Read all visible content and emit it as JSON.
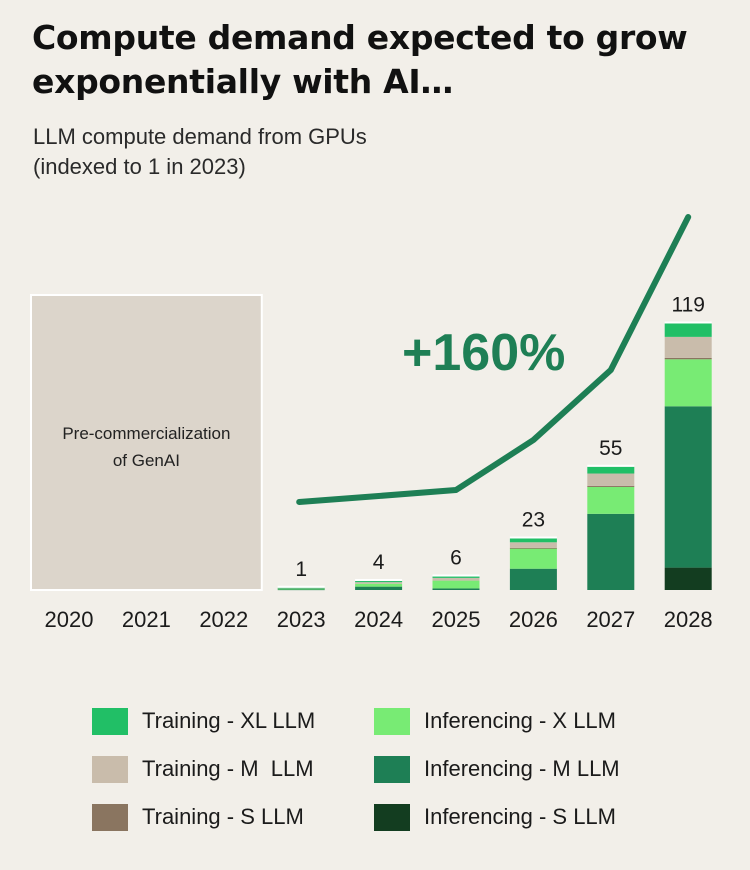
{
  "title_line1": "Compute demand expected to grow",
  "title_line2": "exponentially with AI…",
  "subtitle_line1": "LLM compute demand from GPUs",
  "subtitle_line2": "(indexed to 1 in 2023)",
  "chart_data": {
    "type": "bar",
    "stacked": true,
    "categories": [
      "2020",
      "2021",
      "2022",
      "2023",
      "2024",
      "2025",
      "2026",
      "2027",
      "2028"
    ],
    "totals": [
      null,
      null,
      null,
      1,
      4,
      6,
      23,
      55,
      119
    ],
    "total_labels": [
      "",
      "",
      "",
      "1",
      "4",
      "6",
      "23",
      "55",
      "119"
    ],
    "series": [
      {
        "name": "Inferencing - S LLM",
        "color": "#133d20",
        "values": [
          0,
          0,
          0,
          0,
          0,
          0,
          0,
          0,
          10
        ]
      },
      {
        "name": "Inferencing - M LLM",
        "color": "#1e7f55",
        "values": [
          0,
          0,
          0,
          0.3,
          1.5,
          0.7,
          9.5,
          34,
          72
        ]
      },
      {
        "name": "Inferencing - X LLM",
        "color": "#78eb74",
        "values": [
          0,
          0,
          0,
          0.3,
          1.3,
          3.5,
          9,
          12,
          21
        ]
      },
      {
        "name": "Training - S LLM",
        "color": "#8a7560",
        "values": [
          0,
          0,
          0,
          0,
          0,
          0,
          0.3,
          0.5,
          0.6
        ]
      },
      {
        "name": "Training - M  LLM",
        "color": "#c9bcab",
        "values": [
          0,
          0,
          0,
          0.2,
          0.7,
          1.2,
          2.5,
          5.5,
          9.4
        ]
      },
      {
        "name": "Training - XL LLM",
        "color": "#21bf66",
        "values": [
          0,
          0,
          0,
          0.2,
          0.5,
          0.6,
          1.7,
          3,
          6
        ]
      }
    ],
    "trend_line": {
      "label": "+160%",
      "color": "#1e7f55",
      "x": [
        "2023",
        "2024",
        "2025",
        "2026",
        "2027",
        "2028"
      ]
    },
    "shaded_region": {
      "label_line1": "Pre-commercialization",
      "label_line2": "of GenAI",
      "categories": [
        "2020",
        "2021",
        "2022"
      ]
    },
    "legend_position": "bottom",
    "grid": false
  },
  "legend": [
    {
      "label": "Training - XL LLM",
      "color": "#21bf66"
    },
    {
      "label": "Inferencing - X LLM",
      "color": "#78eb74"
    },
    {
      "label": "Training - M  LLM",
      "color": "#c9bcab"
    },
    {
      "label": "Inferencing - M LLM",
      "color": "#1e7f55"
    },
    {
      "label": "Training - S LLM",
      "color": "#8a7560"
    },
    {
      "label": "Inferencing - S LLM",
      "color": "#133d20"
    }
  ]
}
